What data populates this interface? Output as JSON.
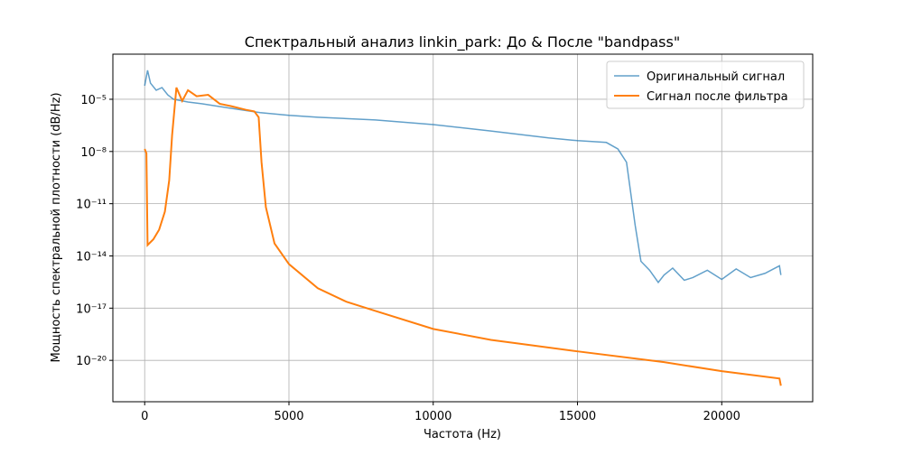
{
  "chart_data": {
    "type": "line",
    "title": "Спектральный анализ linkin_park: До & После \"bandpass\"",
    "x_label": "Частота (Hz)",
    "y_label": "Мощность спектральной плотности (dB/Hz)",
    "y_scale": "log",
    "grid": true,
    "legend": "upper right",
    "xlim": [
      -1102.5,
      23152.5
    ],
    "xticks": [
      0,
      5000,
      10000,
      15000,
      20000
    ],
    "ylim": [
      4.2e-23,
      0.0039
    ],
    "yticks": [
      {
        "value": 1e-20,
        "label": "10⁻²⁰"
      },
      {
        "value": 1e-17,
        "label": "10⁻¹⁷"
      },
      {
        "value": 1e-14,
        "label": "10⁻¹⁴"
      },
      {
        "value": 1e-11,
        "label": "10⁻¹¹"
      },
      {
        "value": 1e-08,
        "label": "10⁻⁸"
      },
      {
        "value": 1e-05,
        "label": "10⁻⁵"
      }
    ],
    "series": [
      {
        "name": "Оригинальный сигнал",
        "color": "#1f77b4",
        "opacity": 0.7,
        "width": 1.5,
        "x": [
          0,
          100,
          200,
          400,
          600,
          800,
          1000,
          1500,
          2000,
          3000,
          4000,
          5000,
          6000,
          8000,
          10000,
          12000,
          14000,
          15000,
          16000,
          16400,
          16700,
          17000,
          17200,
          17500,
          17800,
          18000,
          18300,
          18700,
          19000,
          19500,
          20000,
          20500,
          21000,
          21500,
          22000,
          22050
        ],
        "values": [
          6e-05,
          0.00046,
          8.5e-05,
          3.3e-05,
          4.7e-05,
          1.8e-05,
          1e-05,
          7e-06,
          5.5e-06,
          3e-06,
          1.7e-06,
          1.2e-06,
          9.3e-07,
          6.5e-07,
          3.5e-07,
          1.5e-07,
          6e-08,
          4.2e-08,
          3.3e-08,
          1.4e-08,
          2.4e-09,
          5.7e-13,
          4.9e-15,
          1.5e-15,
          3e-16,
          8e-16,
          2e-15,
          4e-16,
          5.7e-16,
          1.5e-15,
          4.5e-16,
          1.8e-15,
          5.7e-16,
          1e-15,
          2.7e-15,
          8e-16
        ]
      },
      {
        "name": "Сигнал после фильтра",
        "color": "#ff7f0e",
        "opacity": 1,
        "width": 2,
        "x": [
          0,
          60,
          100,
          300,
          500,
          700,
          850,
          950,
          1100,
          1300,
          1500,
          1800,
          2200,
          2600,
          3000,
          3500,
          3800,
          3950,
          4050,
          4200,
          4500,
          5000,
          6000,
          7000,
          8000,
          10000,
          12000,
          15000,
          18000,
          20000,
          22000,
          22050
        ],
        "values": [
          1.4e-08,
          8e-09,
          4.2e-14,
          9e-14,
          3.2e-13,
          3.5e-12,
          2.2e-10,
          8.5e-08,
          4.7e-05,
          8e-06,
          3.3e-05,
          1.5e-05,
          1.8e-05,
          5.5e-06,
          4e-06,
          2.5e-06,
          2e-06,
          9.3e-07,
          2.4e-09,
          6.3e-12,
          5.2e-14,
          3.4e-15,
          1.4e-16,
          2.3e-17,
          6.9e-18,
          6.4e-19,
          1.5e-19,
          3.3e-20,
          7.9e-21,
          2.4e-21,
          9.1e-22,
          3.5e-22
        ]
      }
    ]
  }
}
